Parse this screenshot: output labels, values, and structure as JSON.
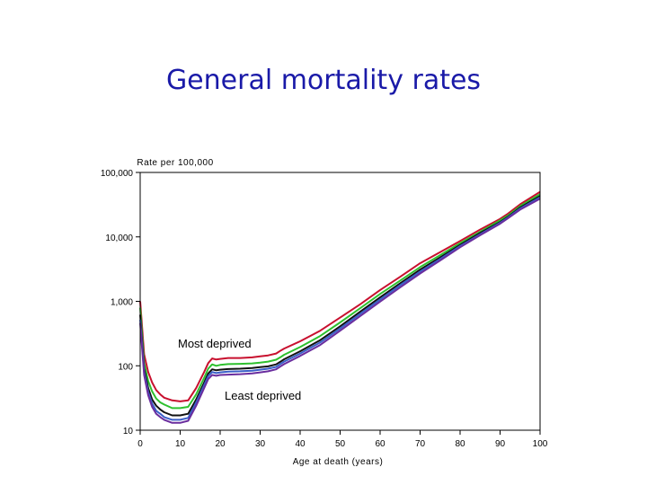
{
  "slide": {
    "title": "General mortality rates"
  },
  "chart_data": {
    "type": "line",
    "title": "General mortality rates",
    "xlabel": "Age at death (years)",
    "ylabel": "Rate per 100,000",
    "yscale": "log",
    "xlim": [
      0,
      100
    ],
    "ylim": [
      10,
      100000
    ],
    "x_ticks": [
      0,
      10,
      20,
      30,
      40,
      50,
      60,
      70,
      80,
      90,
      100
    ],
    "y_ticks": [
      {
        "value": 10,
        "label": "10"
      },
      {
        "value": 100,
        "label": "100"
      },
      {
        "value": 1000,
        "label": "1,000"
      },
      {
        "value": 10000,
        "label": "10,000"
      },
      {
        "value": 100000,
        "label": "100,000"
      }
    ],
    "x": [
      0,
      1,
      2,
      3,
      4,
      5,
      6,
      8,
      10,
      12,
      14,
      16,
      17,
      18,
      19,
      20,
      22,
      25,
      28,
      30,
      32,
      34,
      35,
      36,
      40,
      45,
      50,
      55,
      60,
      65,
      70,
      75,
      80,
      85,
      90,
      92,
      95,
      100
    ],
    "series": [
      {
        "name": "Most deprived",
        "color": "#c8102e",
        "values": [
          1000,
          150,
          80,
          55,
          42,
          36,
          32,
          29,
          28,
          29,
          45,
          80,
          110,
          130,
          125,
          128,
          132,
          132,
          135,
          140,
          145,
          155,
          170,
          185,
          240,
          350,
          560,
          900,
          1500,
          2400,
          3900,
          5800,
          8600,
          13000,
          19000,
          23000,
          32000,
          50000
        ]
      },
      {
        "name": "",
        "color": "#2ec02e",
        "values": [
          800,
          110,
          58,
          40,
          31,
          27,
          25,
          22,
          22,
          23,
          36,
          65,
          90,
          105,
          100,
          103,
          106,
          107,
          109,
          112,
          116,
          124,
          135,
          148,
          195,
          290,
          470,
          780,
          1300,
          2100,
          3400,
          5200,
          8000,
          12000,
          18000,
          21500,
          30000,
          46000
        ]
      },
      {
        "name": "",
        "color": "#111111",
        "values": [
          620,
          90,
          45,
          30,
          24,
          21,
          19,
          17,
          17,
          18,
          30,
          55,
          76,
          88,
          85,
          87,
          89,
          90,
          92,
          95,
          98,
          105,
          115,
          126,
          168,
          250,
          410,
          690,
          1150,
          1900,
          3100,
          4800,
          7500,
          11500,
          17000,
          20500,
          28500,
          43000
        ]
      },
      {
        "name": "",
        "color": "#3a5fc8",
        "values": [
          520,
          80,
          39,
          26,
          20,
          18,
          16,
          14.5,
          14.5,
          15.5,
          27,
          50,
          69,
          80,
          77,
          79,
          81,
          82,
          84,
          87,
          90,
          96,
          106,
          116,
          155,
          230,
          380,
          640,
          1070,
          1780,
          2900,
          4550,
          7200,
          11000,
          16500,
          20000,
          27500,
          41000
        ]
      },
      {
        "name": "Least deprived",
        "color": "#6a2d9e",
        "values": [
          460,
          72,
          35,
          23,
          18,
          16,
          14.5,
          13,
          13,
          14,
          24,
          45,
          62,
          72,
          70,
          72,
          73,
          74,
          76,
          79,
          82,
          88,
          97,
          106,
          142,
          210,
          350,
          590,
          990,
          1650,
          2700,
          4300,
          6900,
          10600,
          16000,
          19500,
          26500,
          39000
        ]
      }
    ],
    "annotations": [
      {
        "text": "Most deprived",
        "target": "upper curves"
      },
      {
        "text": "Least deprived",
        "target": "lower curves"
      }
    ],
    "grid": false,
    "legend": "none"
  }
}
